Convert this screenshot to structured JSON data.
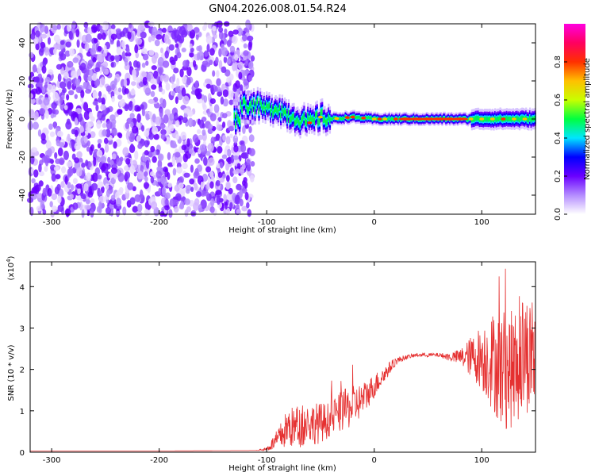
{
  "title": "GN04.2026.008.01.54.R24",
  "chart_data": [
    {
      "type": "heatmap",
      "xlabel": "Height of straight line (km)",
      "ylabel": "Frequency (Hz)",
      "xlim": [
        -320,
        150
      ],
      "ylim": [
        -50,
        50
      ],
      "xticks": [
        -300,
        -200,
        -100,
        0,
        100
      ],
      "yticks": [
        -40,
        -20,
        0,
        20,
        40
      ],
      "colorbar": {
        "label": "Normalized spectral amplitude",
        "range": [
          0,
          1
        ],
        "ticks": [
          0.0,
          0.2,
          0.4,
          0.6,
          0.8
        ],
        "colors": [
          "#ffffff",
          "#b48cff",
          "#6a00ff",
          "#0000ff",
          "#00e5ff",
          "#00ff40",
          "#c8ff00",
          "#ffc000",
          "#ff3000",
          "#ff0060",
          "#ff00e0"
        ]
      },
      "regions": [
        {
          "x_from": -320,
          "x_to": -113,
          "description": "noise",
          "freq_from": -50,
          "freq_to": 50,
          "amplitude_max": 0.15
        },
        {
          "x_from": -130,
          "x_to": 150,
          "description": "signal band near 0 Hz",
          "amplitude_max": 1.0
        }
      ],
      "signal_center_freq": [
        {
          "x": -125,
          "y": 8
        },
        {
          "x": -110,
          "y": 7
        },
        {
          "x": -100,
          "y": 5
        },
        {
          "x": -90,
          "y": 6
        },
        {
          "x": -80,
          "y": 2
        },
        {
          "x": -70,
          "y": 0
        },
        {
          "x": -60,
          "y": -2
        },
        {
          "x": -50,
          "y": 1
        },
        {
          "x": -40,
          "y": 0
        },
        {
          "x": -20,
          "y": 1
        },
        {
          "x": 0,
          "y": 0
        },
        {
          "x": 50,
          "y": 0
        },
        {
          "x": 100,
          "y": 0
        },
        {
          "x": 150,
          "y": 0
        }
      ]
    },
    {
      "type": "line",
      "xlabel": "Height of straight line (km)",
      "ylabel": "SNR (10 * v/v)",
      "y_scale_label": "(x10",
      "y_scale_exponent": "4",
      "xlim": [
        -320,
        150
      ],
      "ylim": [
        0,
        4.6
      ],
      "xticks": [
        -300,
        -200,
        -100,
        0,
        100
      ],
      "yticks": [
        0,
        1,
        2,
        3,
        4
      ],
      "color": "#e53030",
      "series": [
        {
          "x": [
            -320,
            -200,
            -110,
            -100,
            -90,
            -80,
            -70,
            -60,
            -50,
            -40,
            -30,
            -20,
            -10,
            0,
            10,
            20,
            30,
            40,
            50,
            60,
            70,
            80,
            90,
            100,
            110,
            120,
            130,
            140,
            150
          ],
          "y": [
            0.03,
            0.03,
            0.04,
            0.08,
            0.3,
            0.6,
            0.6,
            0.7,
            0.7,
            0.8,
            1.0,
            1.1,
            1.3,
            1.6,
            1.9,
            2.2,
            2.3,
            2.35,
            2.35,
            2.35,
            2.3,
            2.3,
            2.3,
            2.3,
            2.2,
            2.0,
            2.0,
            2.4,
            2.3
          ],
          "y_spread": [
            0,
            0,
            0,
            0.05,
            0.25,
            0.5,
            0.5,
            0.5,
            0.5,
            0.4,
            0.5,
            0.5,
            0.4,
            0.3,
            0.2,
            0.1,
            0.05,
            0.05,
            0.05,
            0.05,
            0.1,
            0.2,
            0.5,
            0.8,
            1.2,
            1.5,
            1.4,
            1.5,
            1.3
          ]
        }
      ]
    }
  ]
}
